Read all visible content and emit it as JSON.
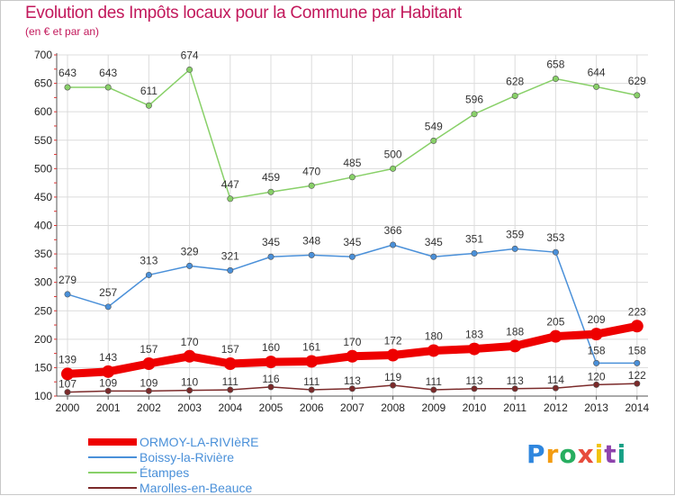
{
  "title": "Evolution des Impôts locaux pour la Commune par Habitant",
  "subtitle": "(en € et par an)",
  "logo_text": "Proxiti",
  "chart_data": {
    "type": "line",
    "title": "Evolution des Impôts locaux pour la Commune par Habitant",
    "subtitle": "(en € et par an)",
    "xlabel": "",
    "ylabel": "",
    "ylim": [
      100,
      700
    ],
    "yticks": [
      100,
      150,
      200,
      250,
      300,
      350,
      400,
      450,
      500,
      550,
      600,
      650,
      700
    ],
    "grid": true,
    "x": [
      "2000",
      "2001",
      "2002",
      "2003",
      "2004",
      "2005",
      "2006",
      "2007",
      "2008",
      "2009",
      "2010",
      "2011",
      "2012",
      "2013",
      "2014"
    ],
    "series": [
      {
        "name": "ORMOY-LA-RIVIèRE",
        "color": "#ee0000",
        "values": [
          139,
          143,
          157,
          170,
          157,
          160,
          161,
          170,
          172,
          180,
          183,
          188,
          205,
          209,
          223
        ]
      },
      {
        "name": "Boissy-la-Rivière",
        "color": "#4a90d9",
        "values": [
          279,
          257,
          313,
          329,
          321,
          345,
          348,
          345,
          366,
          345,
          351,
          359,
          353,
          158,
          158
        ]
      },
      {
        "name": "Étampes",
        "color": "#88d068",
        "values": [
          643,
          643,
          611,
          674,
          447,
          459,
          470,
          485,
          500,
          549,
          596,
          628,
          658,
          644,
          629
        ]
      },
      {
        "name": "Marolles-en-Beauce",
        "color": "#7b2a2a",
        "values": [
          107,
          109,
          109,
          110,
          111,
          116,
          111,
          113,
          119,
          111,
          113,
          113,
          114,
          120,
          122
        ]
      }
    ]
  }
}
